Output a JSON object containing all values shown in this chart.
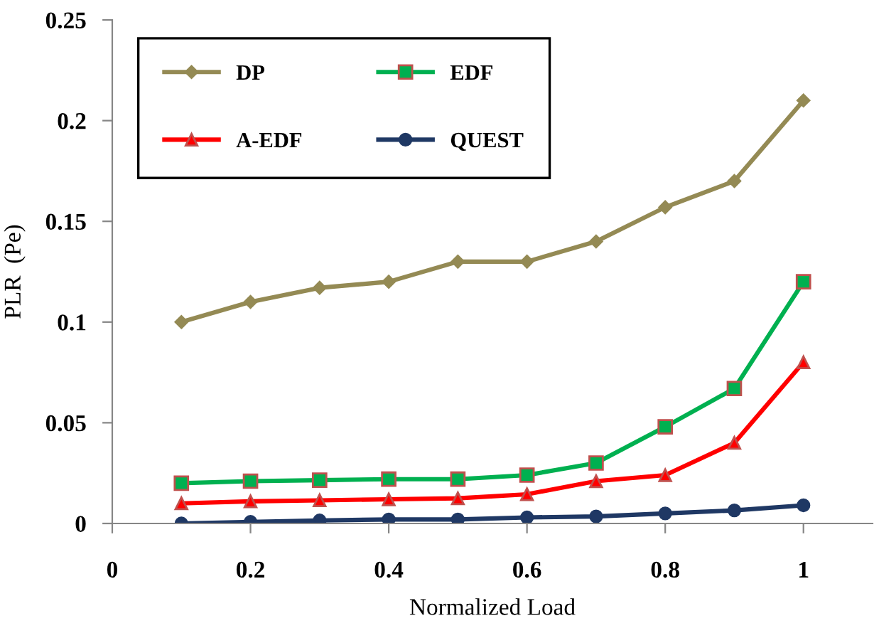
{
  "chart_data": {
    "type": "line",
    "xlabel": "Normalized Load",
    "ylabel": "PLR  (Pe)",
    "x": [
      0.1,
      0.2,
      0.3,
      0.4,
      0.5,
      0.6,
      0.7,
      0.8,
      0.9,
      1.0
    ],
    "series": [
      {
        "name": "DP",
        "color": "#948a54",
        "marker": "diamond",
        "values": [
          0.1,
          0.11,
          0.117,
          0.12,
          0.13,
          0.13,
          0.14,
          0.157,
          0.17,
          0.21
        ]
      },
      {
        "name": "EDF",
        "color": "#00b050",
        "marker": "square",
        "values": [
          0.02,
          0.021,
          0.0215,
          0.022,
          0.022,
          0.024,
          0.03,
          0.048,
          0.067,
          0.12
        ]
      },
      {
        "name": "A-EDF",
        "color": "#ff0000",
        "marker": "triangle",
        "values": [
          0.01,
          0.011,
          0.0115,
          0.012,
          0.0125,
          0.0145,
          0.021,
          0.024,
          0.04,
          0.08
        ]
      },
      {
        "name": "QUEST",
        "color": "#1f3864",
        "marker": "circle",
        "values": [
          0.0,
          0.0008,
          0.0015,
          0.002,
          0.002,
          0.003,
          0.0035,
          0.005,
          0.0065,
          0.009
        ]
      }
    ],
    "xlim": [
      0,
      1.1
    ],
    "xticks": [
      0,
      0.2,
      0.4,
      0.6,
      0.8,
      1
    ],
    "ylim": [
      0,
      0.25
    ],
    "yticks": [
      0,
      0.05,
      0.1,
      0.15,
      0.2,
      0.25
    ],
    "grid": false,
    "legend": "top left",
    "line_style": "solid"
  }
}
